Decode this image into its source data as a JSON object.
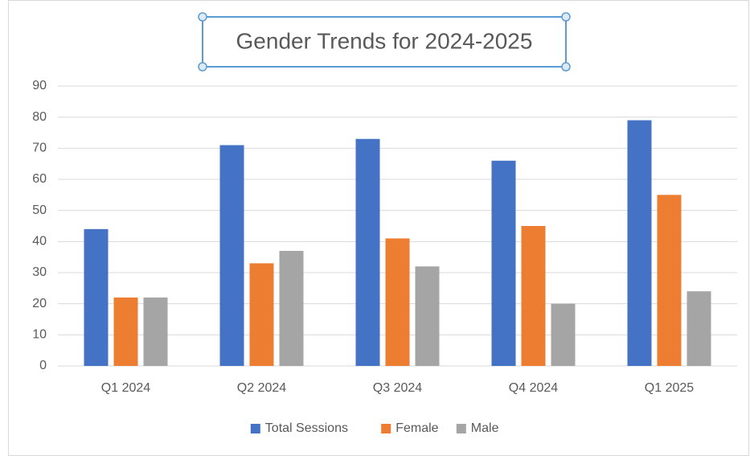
{
  "chart_data": {
    "type": "bar",
    "title": "Gender Trends for 2024-2025",
    "categories": [
      "Q1 2024",
      "Q2 2024",
      "Q3 2024",
      "Q4 2024",
      "Q1 2025"
    ],
    "series": [
      {
        "name": "Total Sessions",
        "color": "#4472c4",
        "values": [
          44,
          71,
          73,
          66,
          79
        ]
      },
      {
        "name": "Female",
        "color": "#ed7d31",
        "values": [
          22,
          33,
          41,
          45,
          55
        ]
      },
      {
        "name": "Male",
        "color": "#a5a5a5",
        "values": [
          22,
          37,
          32,
          20,
          24
        ]
      }
    ],
    "ylim": [
      0,
      90
    ],
    "yticks": [
      0,
      10,
      20,
      30,
      40,
      50,
      60,
      70,
      80,
      90
    ],
    "grid": true,
    "legend": "bottom"
  }
}
